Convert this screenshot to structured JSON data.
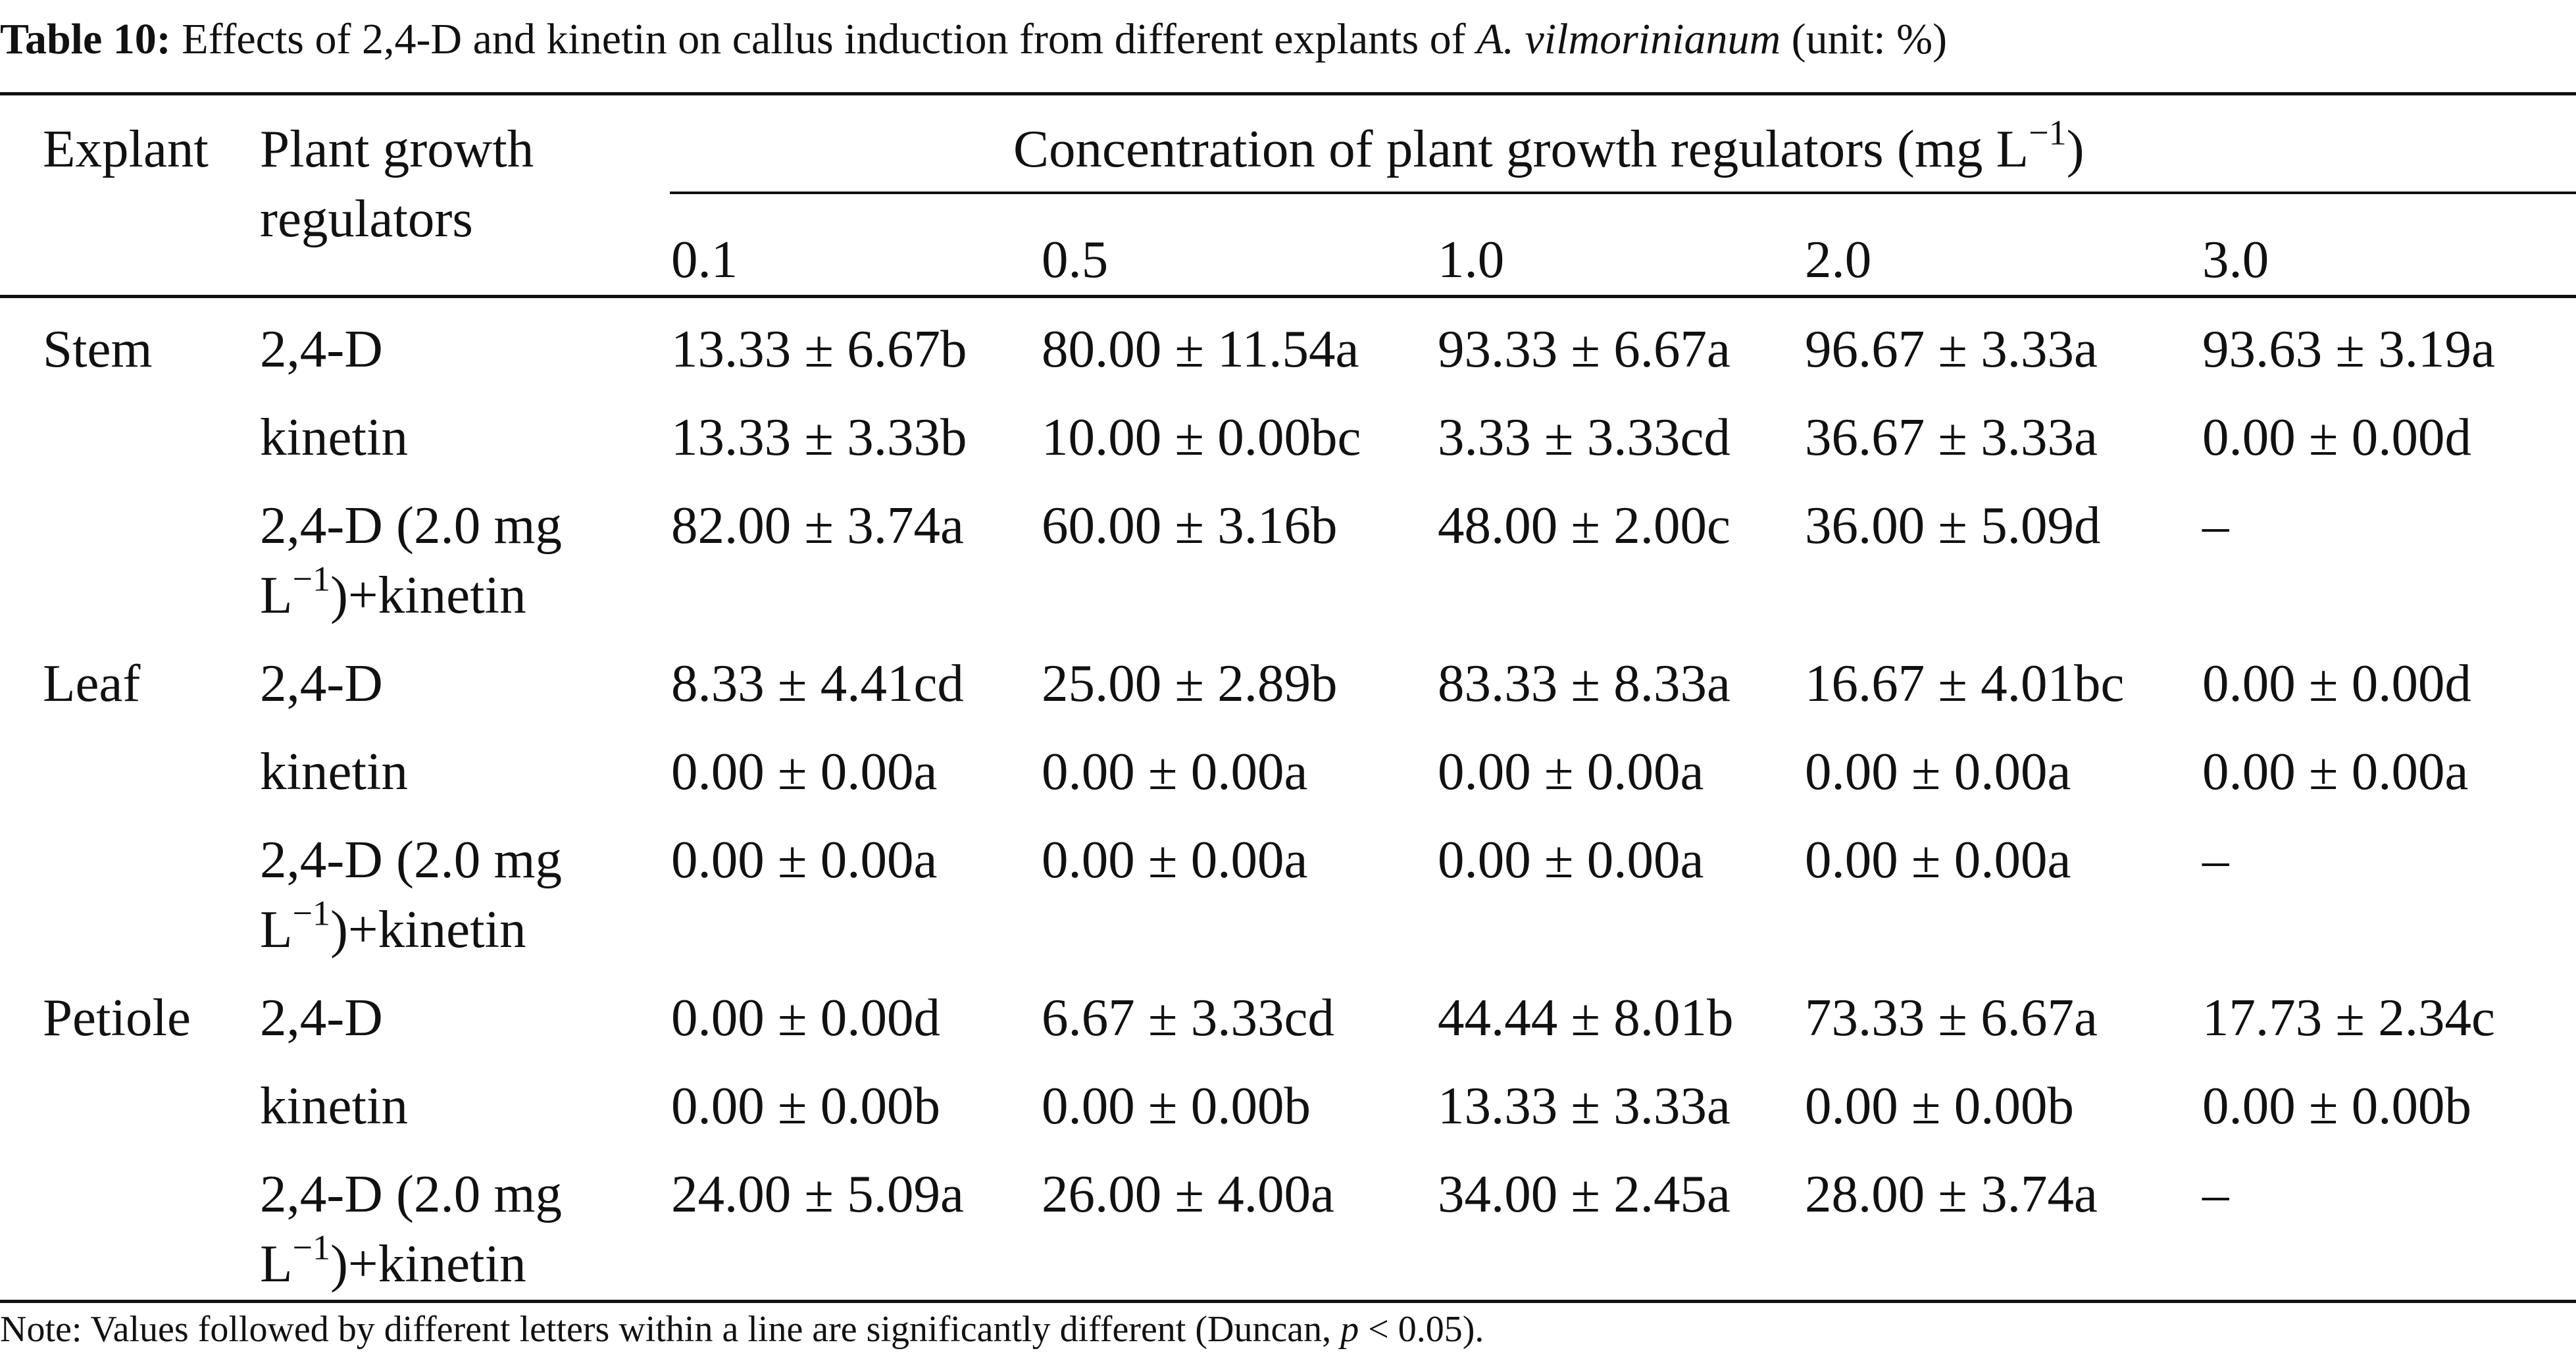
{
  "caption": {
    "label": "Table 10:",
    "text_before": "Effects of 2,4-D and kinetin on callus induction from different explants of",
    "species": "A. vilmorinianum",
    "text_after": "(unit: %)"
  },
  "header": {
    "explant": "Explant",
    "pgr_line1": "Plant growth",
    "pgr_line2": "regulators",
    "concentration_text": "Concentration of plant growth regulators (mg L",
    "concentration_exp": "−1",
    "concentration_close": ")",
    "levels": [
      "0.1",
      "0.5",
      "1.0",
      "2.0",
      "3.0"
    ]
  },
  "rows": [
    {
      "explant": "Stem",
      "pgr_line1": "2,4-D",
      "pgr_line2": "",
      "pgr_exp": "",
      "pgr_tail": "",
      "values": [
        "13.33 ± 6.67b",
        "80.00 ± 11.54a",
        "93.33 ± 6.67a",
        "96.67 ± 3.33a",
        "93.63 ± 3.19a"
      ]
    },
    {
      "explant": "",
      "pgr_line1": "kinetin",
      "pgr_line2": "",
      "pgr_exp": "",
      "pgr_tail": "",
      "values": [
        "13.33 ± 3.33b",
        "10.00 ± 0.00bc",
        "3.33 ± 3.33cd",
        "36.67 ± 3.33a",
        "0.00 ± 0.00d"
      ]
    },
    {
      "explant": "",
      "pgr_line1": "2,4-D (2.0 mg",
      "pgr_line2": "L",
      "pgr_exp": "−1",
      "pgr_tail": ")+kinetin",
      "values": [
        "82.00 ± 3.74a",
        "60.00 ± 3.16b",
        "48.00 ± 2.00c",
        "36.00 ± 5.09d",
        "–"
      ]
    },
    {
      "explant": "Leaf",
      "pgr_line1": "2,4-D",
      "pgr_line2": "",
      "pgr_exp": "",
      "pgr_tail": "",
      "values": [
        "8.33 ± 4.41cd",
        "25.00 ± 2.89b",
        "83.33 ± 8.33a",
        "16.67 ± 4.01bc",
        "0.00 ± 0.00d"
      ]
    },
    {
      "explant": "",
      "pgr_line1": "kinetin",
      "pgr_line2": "",
      "pgr_exp": "",
      "pgr_tail": "",
      "values": [
        "0.00 ± 0.00a",
        "0.00 ± 0.00a",
        "0.00 ± 0.00a",
        "0.00 ± 0.00a",
        "0.00 ± 0.00a"
      ]
    },
    {
      "explant": "",
      "pgr_line1": "2,4-D (2.0 mg",
      "pgr_line2": "L",
      "pgr_exp": "−1",
      "pgr_tail": ")+kinetin",
      "values": [
        "0.00 ± 0.00a",
        "0.00 ± 0.00a",
        "0.00 ± 0.00a",
        "0.00 ± 0.00a",
        "–"
      ]
    },
    {
      "explant": "Petiole",
      "pgr_line1": "2,4-D",
      "pgr_line2": "",
      "pgr_exp": "",
      "pgr_tail": "",
      "values": [
        "0.00 ± 0.00d",
        "6.67 ± 3.33cd",
        "44.44 ± 8.01b",
        "73.33 ± 6.67a",
        "17.73 ± 2.34c"
      ]
    },
    {
      "explant": "",
      "pgr_line1": "kinetin",
      "pgr_line2": "",
      "pgr_exp": "",
      "pgr_tail": "",
      "values": [
        "0.00 ± 0.00b",
        "0.00 ± 0.00b",
        "13.33 ± 3.33a",
        "0.00 ± 0.00b",
        "0.00 ± 0.00b"
      ]
    },
    {
      "explant": "",
      "pgr_line1": "2,4-D (2.0 mg",
      "pgr_line2": "L",
      "pgr_exp": "−1",
      "pgr_tail": ")+kinetin",
      "values": [
        "24.00 ± 5.09a",
        "26.00 ± 4.00a",
        "34.00 ± 2.45a",
        "28.00 ± 3.74a",
        "–"
      ]
    }
  ],
  "note": {
    "text_before": "Note: Values followed by different letters within a line are significantly different (Duncan,",
    "p": "p",
    "text_after": "< 0.05)."
  }
}
